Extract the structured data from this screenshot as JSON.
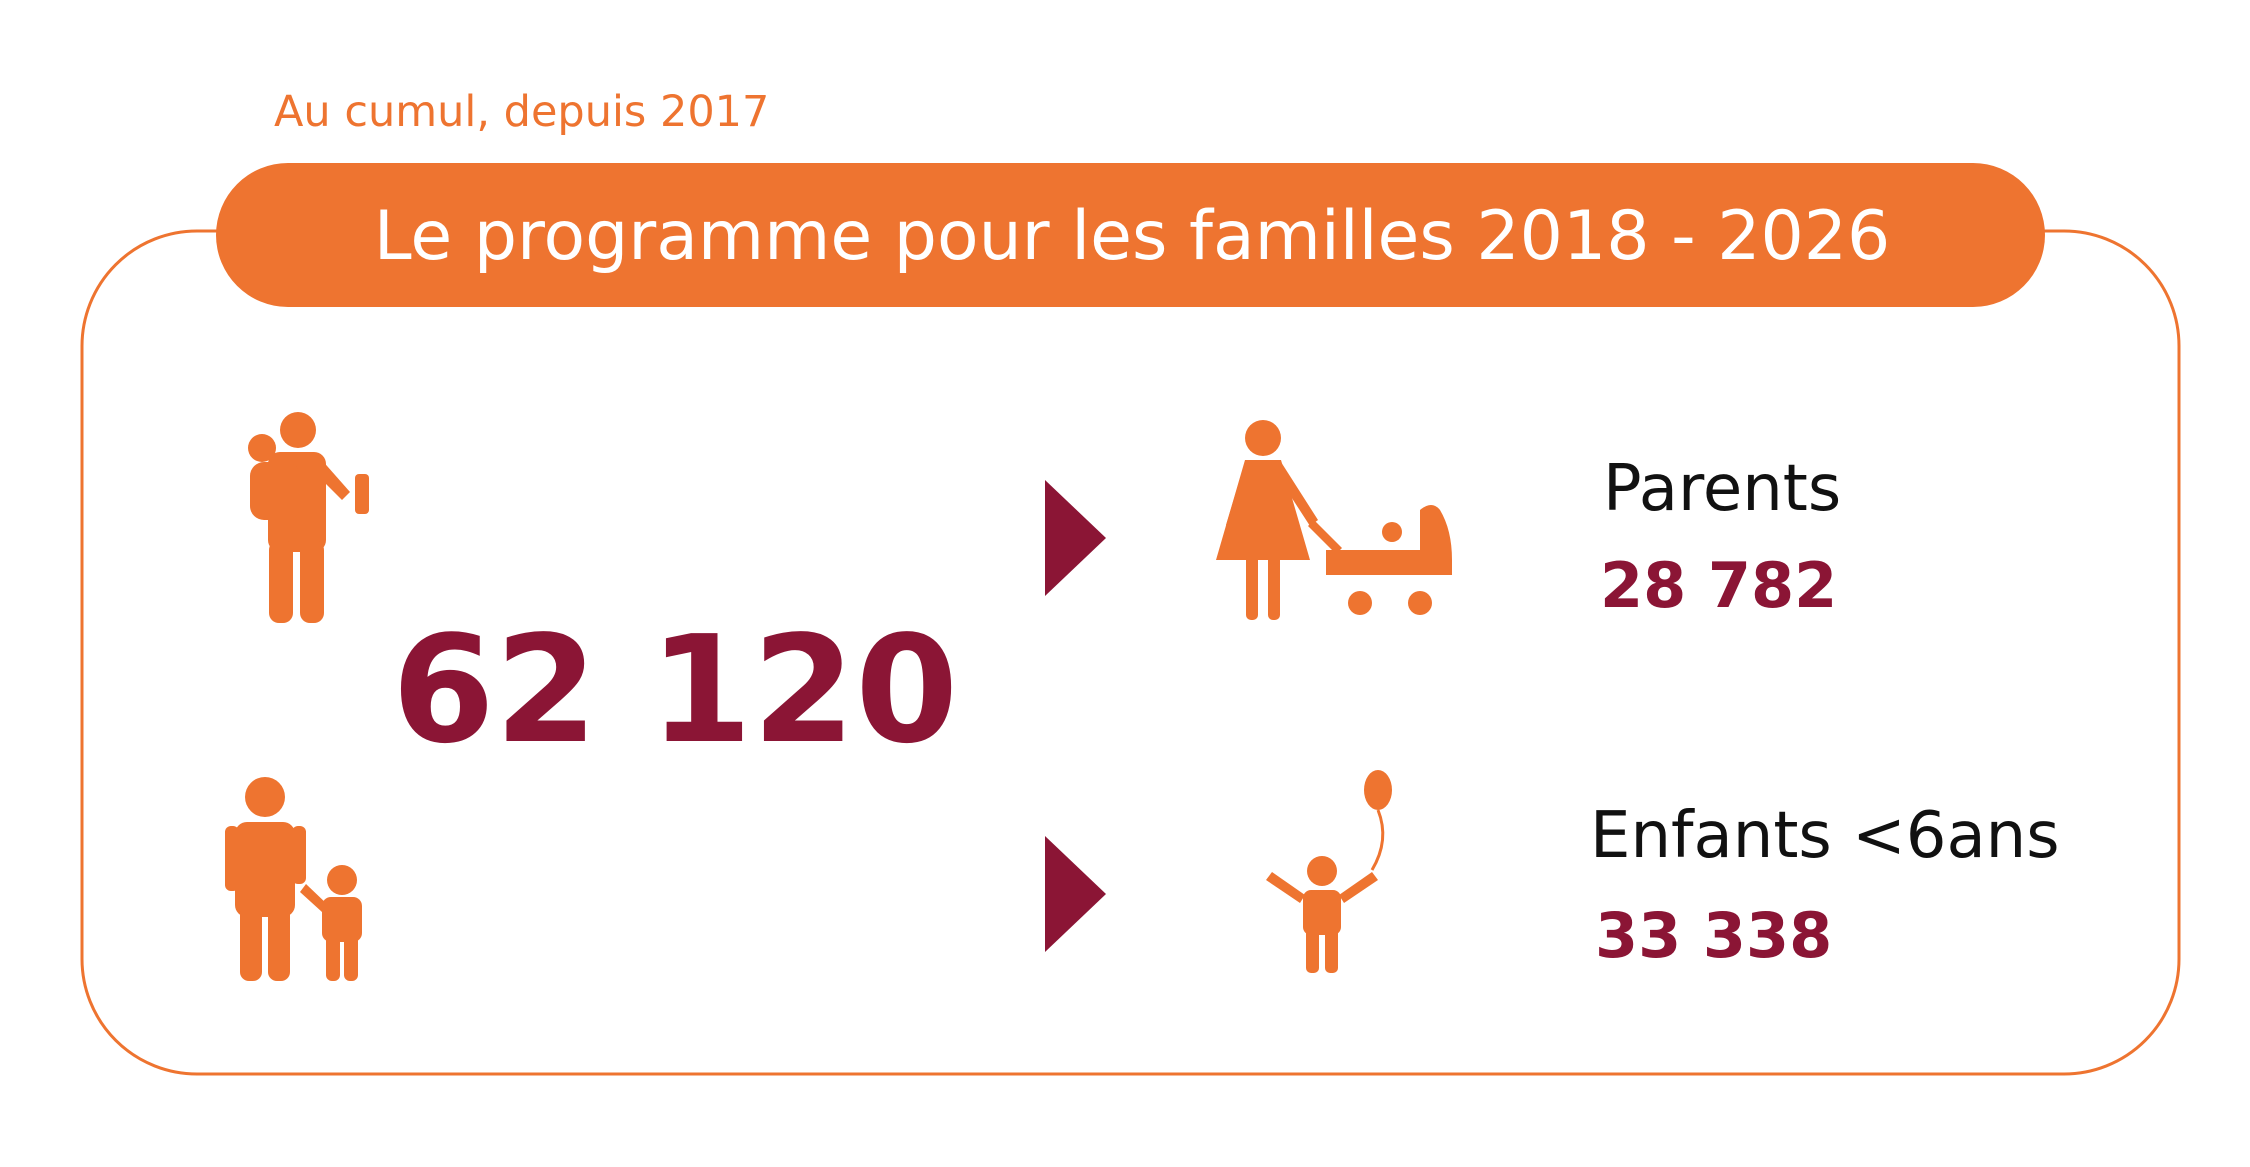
{
  "note": "Au cumul, depuis 2017",
  "title": "Le programme pour les familles 2018 - 2026",
  "total": "62 120",
  "groups": [
    {
      "label": "Parents",
      "value": "28 782"
    },
    {
      "label": "Enfants <6ans",
      "value": "33 338"
    }
  ]
}
